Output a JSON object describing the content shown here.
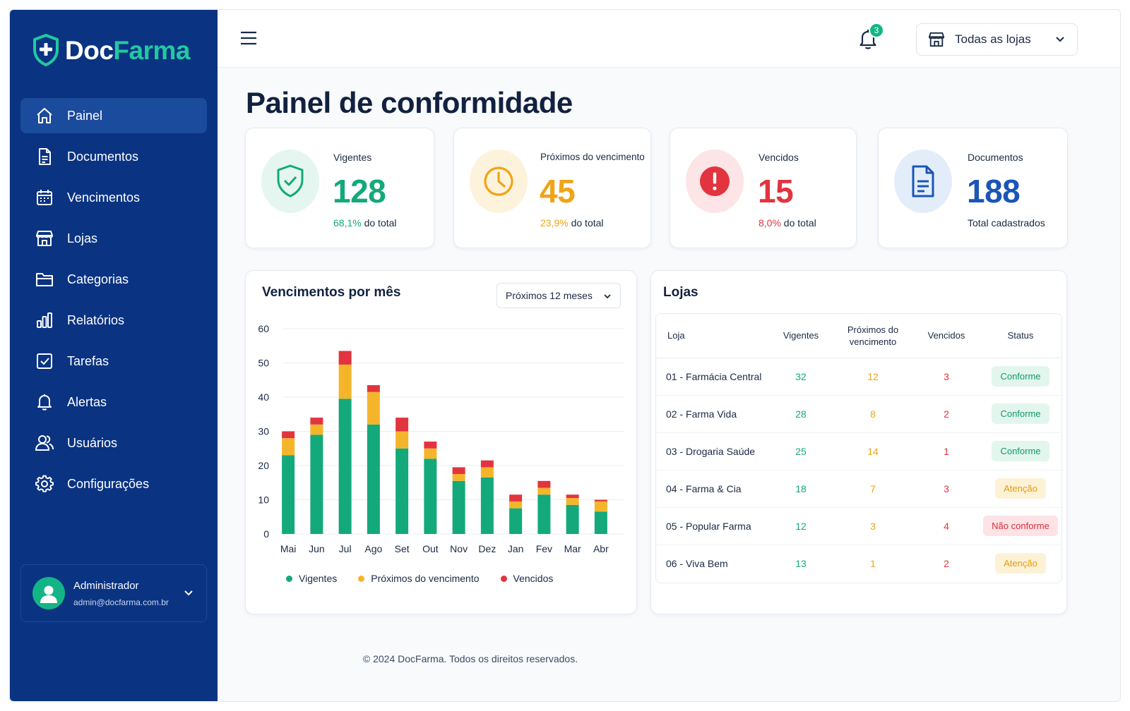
{
  "brand": {
    "part1": "Doc",
    "part2": "Farma"
  },
  "sidebar": {
    "items": [
      {
        "label": "Painel",
        "icon": "home-icon"
      },
      {
        "label": "Documentos",
        "icon": "document-icon"
      },
      {
        "label": "Vencimentos",
        "icon": "calendar-icon"
      },
      {
        "label": "Lojas",
        "icon": "store-icon"
      },
      {
        "label": "Categorias",
        "icon": "folder-icon"
      },
      {
        "label": "Relatórios",
        "icon": "bar-chart-icon"
      },
      {
        "label": "Tarefas",
        "icon": "checkbox-icon"
      },
      {
        "label": "Alertas",
        "icon": "bell-icon"
      },
      {
        "label": "Usuários",
        "icon": "users-icon"
      },
      {
        "label": "Configurações",
        "icon": "gear-icon"
      }
    ],
    "active": "Painel"
  },
  "user": {
    "name": "Administrador",
    "email": "admin@docfarma.com.br"
  },
  "header": {
    "notifications": "3",
    "store_filter": "Todas as lojas"
  },
  "page": {
    "title": "Painel de conformidade"
  },
  "kpis": [
    {
      "label": "Vigentes",
      "value": "128",
      "pct": "68,1%",
      "suffix": " do total",
      "color": "#13a97b"
    },
    {
      "label": "Próximos do vencimento",
      "value": "45",
      "pct": "23,9%",
      "suffix": " do total",
      "color": "#f0a418"
    },
    {
      "label": "Vencidos",
      "value": "15",
      "pct": "8,0%",
      "suffix": " do total",
      "color": "#e2343f"
    },
    {
      "label": "Documentos",
      "value": "188",
      "pct": "",
      "suffix": "Total cadastrados",
      "color": "#1a56b8"
    }
  ],
  "chart": {
    "title": "Vencimentos por mês",
    "period": "Próximos 12 meses"
  },
  "chart_data": {
    "type": "bar",
    "stacked": true,
    "categories": [
      "Mai",
      "Jun",
      "Jul",
      "Ago",
      "Set",
      "Out",
      "Nov",
      "Dez",
      "Jan",
      "Fev",
      "Mar",
      "Abr"
    ],
    "series": [
      {
        "name": "Vigentes",
        "color": "#13a97b",
        "values": [
          23,
          29,
          39.5,
          32,
          25,
          22,
          15.5,
          16.5,
          7.5,
          11.5,
          8.5,
          6.5
        ]
      },
      {
        "name": "Próximos do vencimento",
        "color": "#f5b52b",
        "values": [
          5,
          3,
          10,
          9.5,
          5,
          3,
          2,
          3,
          2,
          2,
          2,
          3
        ]
      },
      {
        "name": "Vencidos",
        "color": "#e2343f",
        "values": [
          2,
          2,
          4,
          2,
          4,
          2,
          2,
          2,
          2,
          2,
          1,
          0.5
        ]
      }
    ],
    "yticks": [
      "0",
      "10",
      "20",
      "30",
      "40",
      "50",
      "60"
    ],
    "ylim": [
      0,
      60
    ],
    "grid": true,
    "legend": "bottom"
  },
  "stores": {
    "title": "Lojas",
    "columns": [
      "Loja",
      "Vigentes",
      "Próximos do vencimento",
      "Vencidos",
      "Status"
    ],
    "rows": [
      {
        "name": "01 - Farmácia Central",
        "vig": "32",
        "prox": "12",
        "venc": "3",
        "status": "Conforme",
        "kind": "ok"
      },
      {
        "name": "02 - Farma Vida",
        "vig": "28",
        "prox": "8",
        "venc": "2",
        "status": "Conforme",
        "kind": "ok"
      },
      {
        "name": "03 - Drogaria Saúde",
        "vig": "25",
        "prox": "14",
        "venc": "1",
        "status": "Conforme",
        "kind": "ok"
      },
      {
        "name": "04 - Farma & Cia",
        "vig": "18",
        "prox": "7",
        "venc": "3",
        "status": "Atenção",
        "kind": "warn"
      },
      {
        "name": "05 - Popular Farma",
        "vig": "12",
        "prox": "3",
        "venc": "4",
        "status": "Não conforme",
        "kind": "bad"
      },
      {
        "name": "06 - Viva Bem",
        "vig": "13",
        "prox": "1",
        "venc": "2",
        "status": "Atenção",
        "kind": "warn"
      }
    ]
  },
  "footer": {
    "text": "© 2024 DocFarma. Todos os direitos reservados."
  }
}
